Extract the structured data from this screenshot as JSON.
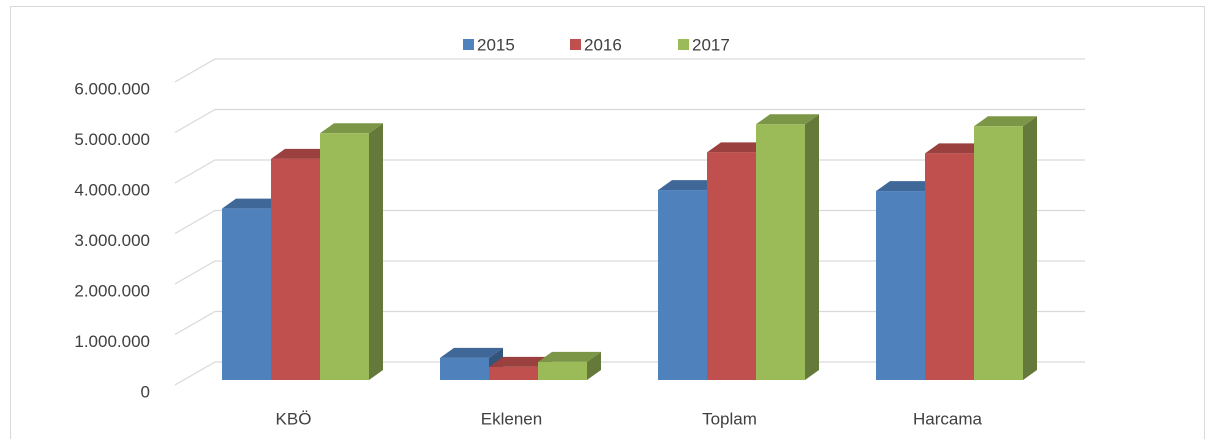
{
  "chart_data": {
    "type": "bar3d",
    "categories": [
      "KBÖ",
      "Eklenen",
      "Toplam",
      "Harcama"
    ],
    "series": [
      {
        "name": "2015",
        "color": "#4f81bd",
        "values": [
          3410000,
          440000,
          3780000,
          3760000
        ]
      },
      {
        "name": "2016",
        "color": "#c0504d",
        "values": [
          4400000,
          260000,
          4530000,
          4510000
        ]
      },
      {
        "name": "2017",
        "color": "#9bbb59",
        "values": [
          4910000,
          360000,
          5090000,
          5050000
        ]
      }
    ],
    "ylim": [
      0,
      6000000
    ],
    "yticks": [
      0,
      {
        "value": 1000000,
        "label": "1.000.000"
      },
      {
        "value": 2000000,
        "label": "2.000.000"
      },
      {
        "value": 3000000,
        "label": "3.000.000"
      },
      {
        "value": 4000000,
        "label": "4.000.000"
      },
      {
        "value": 5000000,
        "label": "5.000.000"
      },
      {
        "value": 6000000,
        "label": "6.000.000"
      }
    ],
    "grid": true,
    "legend": "top"
  }
}
